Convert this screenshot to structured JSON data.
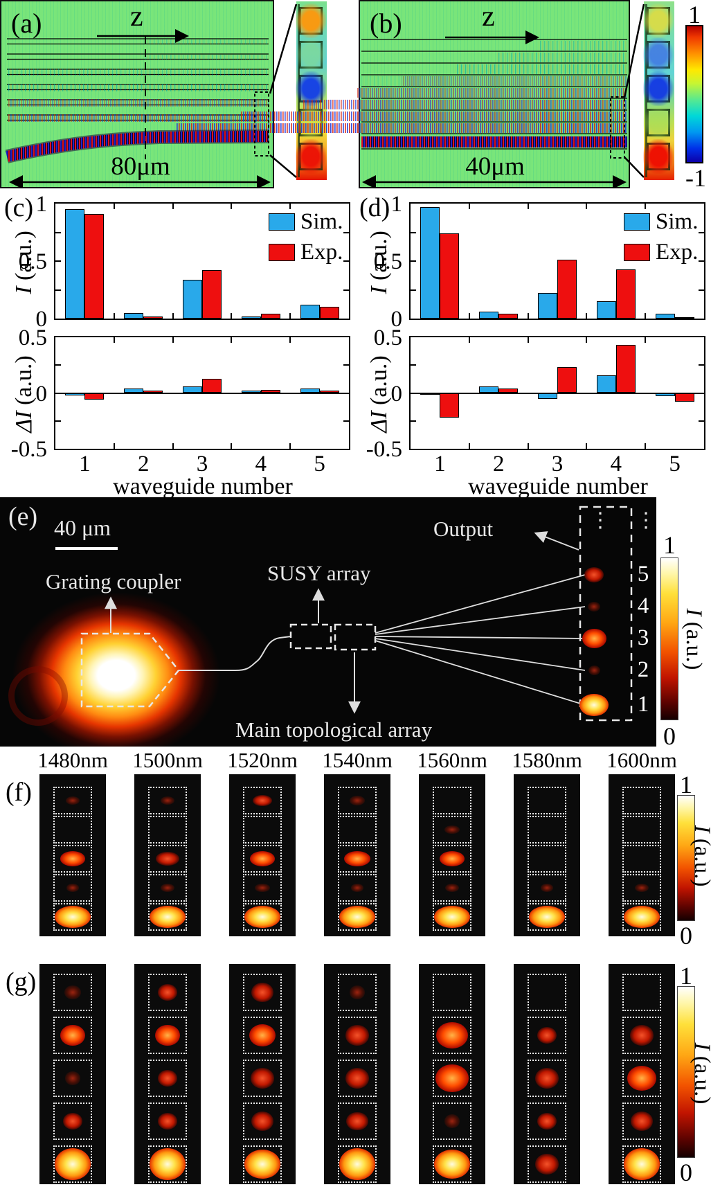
{
  "figure": {
    "panel_a": {
      "tag": "(a)",
      "axis_label": "z",
      "scale": "80μm"
    },
    "panel_b": {
      "tag": "(b)",
      "axis_label": "z",
      "scale": "40μm"
    },
    "field_colorbar": {
      "max": "1",
      "min": "-1"
    },
    "inset_a": {
      "cells": [
        "rgba(255,150,10,0.95)",
        "rgba(140,220,130,0.55)",
        "rgba(18,60,232,0.95)",
        "rgba(205,225,70,0.7)",
        "rgba(236,18,5,0.98)"
      ]
    },
    "inset_b": {
      "cells": [
        "rgba(228,220,60,0.85)",
        "rgba(60,110,232,0.8)",
        "rgba(18,55,228,0.95)",
        "rgba(160,220,90,0.55)",
        "rgba(238,15,2,0.98)"
      ]
    }
  },
  "chart_data": [
    {
      "type": "bar",
      "panel": "(c)",
      "categories": [
        "1",
        "2",
        "3",
        "4",
        "5"
      ],
      "xlabel": "waveguide number",
      "ylabel_I": "I",
      "ylabel_dI": "ΔI",
      "ylabel_unit": " (a.u.)",
      "yticks_I": [
        1,
        0.5,
        0
      ],
      "yticks_dI": [
        0.5,
        0,
        -0.5
      ],
      "ylim_I": [
        0,
        1
      ],
      "ylim_dI": [
        -0.5,
        0.5
      ],
      "series": [
        {
          "name": "Sim.",
          "color": "#29a9ea",
          "I": [
            0.95,
            0.05,
            0.34,
            0.02,
            0.12
          ],
          "dI": [
            -0.02,
            0.04,
            0.06,
            0.02,
            0.04
          ]
        },
        {
          "name": "Exp.",
          "color": "#ee0f0f",
          "I": [
            0.91,
            0.02,
            0.42,
            0.04,
            0.1
          ],
          "dI": [
            -0.06,
            0.02,
            0.13,
            0.03,
            0.02
          ]
        }
      ]
    },
    {
      "type": "bar",
      "panel": "(d)",
      "categories": [
        "1",
        "2",
        "3",
        "4",
        "5"
      ],
      "xlabel": "waveguide number",
      "ylabel_I": "I",
      "ylabel_dI": "ΔI",
      "ylabel_unit": " (a.u.)",
      "yticks_I": [
        1,
        0.5,
        0
      ],
      "yticks_dI": [
        0.5,
        0,
        -0.5
      ],
      "ylim_I": [
        0,
        1
      ],
      "ylim_dI": [
        -0.5,
        0.5
      ],
      "series": [
        {
          "name": "Sim.",
          "color": "#29a9ea",
          "I": [
            0.97,
            0.06,
            0.22,
            0.15,
            0.04
          ],
          "dI": [
            -0.01,
            0.06,
            -0.05,
            0.16,
            -0.03
          ]
        },
        {
          "name": "Exp.",
          "color": "#ee0f0f",
          "I": [
            0.74,
            0.04,
            0.51,
            0.43,
            0.01
          ],
          "dI": [
            -0.22,
            0.04,
            0.23,
            0.43,
            -0.08
          ]
        }
      ]
    }
  ],
  "panel_e": {
    "tag": "(e)",
    "scalebar": "40 μm",
    "labels": {
      "grating": "Grating coupler",
      "susy": "SUSY array",
      "main": "Main topological array",
      "output": "Output"
    },
    "output_numbers": [
      "5",
      "4",
      "3",
      "2",
      "1"
    ],
    "output_spots": [
      0.45,
      0.12,
      0.7,
      0.1,
      0.95
    ],
    "ellipsis": "⋮",
    "colorbar": {
      "max": "1",
      "min": "0",
      "label_symbol": "I",
      "label_unit": " (a.u.)"
    }
  },
  "wavelengths": [
    "1480nm",
    "1500nm",
    "1520nm",
    "1540nm",
    "1560nm",
    "1580nm",
    "1600nm"
  ],
  "row_f": {
    "tag": "(f)",
    "colorbar": {
      "max": "1",
      "min": "0",
      "label_symbol": "I",
      "label_unit": " (a.u.)"
    },
    "panels": [
      {
        "wavelength": "1480nm",
        "intensities": [
          0.1,
          0,
          0.5,
          0.05,
          1
        ]
      },
      {
        "wavelength": "1500nm",
        "intensities": [
          0.1,
          0,
          0.45,
          0.1,
          1
        ]
      },
      {
        "wavelength": "1520nm",
        "intensities": [
          0.3,
          0,
          0.5,
          0.12,
          1
        ]
      },
      {
        "wavelength": "1540nm",
        "intensities": [
          0.15,
          0,
          0.55,
          0.05,
          1
        ]
      },
      {
        "wavelength": "1560nm",
        "intensities": [
          0,
          0.12,
          0.5,
          0.08,
          1
        ]
      },
      {
        "wavelength": "1580nm",
        "intensities": [
          0,
          0,
          0,
          0.04,
          1
        ]
      },
      {
        "wavelength": "1600nm",
        "intensities": [
          0,
          0,
          0,
          0.08,
          1
        ]
      }
    ]
  },
  "row_g": {
    "tag": "(g)",
    "colorbar": {
      "max": "1",
      "min": "0",
      "label_symbol": "I",
      "label_unit": " (a.u.)"
    },
    "panels": [
      {
        "wavelength": "1480nm",
        "intensities": [
          0.18,
          0.5,
          0.15,
          0.3,
          1
        ]
      },
      {
        "wavelength": "1500nm",
        "intensities": [
          0.28,
          0.5,
          0.28,
          0.28,
          1
        ]
      },
      {
        "wavelength": "1520nm",
        "intensities": [
          0.4,
          0.55,
          0.45,
          0.4,
          0.85
        ]
      },
      {
        "wavelength": "1540nm",
        "intensities": [
          0.15,
          0.45,
          0.45,
          0.38,
          1
        ]
      },
      {
        "wavelength": "1560nm",
        "intensities": [
          0,
          0.75,
          0.8,
          0.15,
          0.85
        ]
      },
      {
        "wavelength": "1580nm",
        "intensities": [
          0,
          0.28,
          0.45,
          0.3,
          0.45
        ]
      },
      {
        "wavelength": "1600nm",
        "intensities": [
          0,
          0.45,
          0.65,
          0.4,
          1
        ]
      }
    ]
  }
}
